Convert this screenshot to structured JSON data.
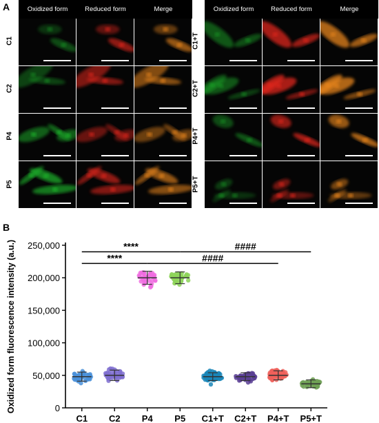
{
  "panel_a": {
    "label": "A",
    "column_headers": [
      "Oxidized form",
      "Reduced form",
      "Merge"
    ],
    "left_rows": [
      "C1",
      "C2",
      "P4",
      "P5"
    ],
    "right_rows": [
      "C1+T",
      "C2+T",
      "P4+T",
      "P5+T"
    ],
    "channel_colors": {
      "oxidized": "#1fae2a",
      "reduced": "#e0261f",
      "merge": "#e8851f"
    }
  },
  "panel_b": {
    "label": "B"
  },
  "chart_data": {
    "type": "scatter",
    "ylabel": "Oxidized form fluorescence intensity (a.u.)",
    "xlabel": "",
    "categories": [
      "C1",
      "C2",
      "P4",
      "P5",
      "C1+T",
      "C2+T",
      "P4+T",
      "P5+T"
    ],
    "ylim": [
      0,
      250000
    ],
    "yticks": [
      "0",
      "50,000",
      "100,000",
      "150,000",
      "200,000",
      "250,000"
    ],
    "ytick_values": [
      0,
      50000,
      100000,
      150000,
      200000,
      250000
    ],
    "colors": [
      "#4a90d9",
      "#7f6fd0",
      "#f06de0",
      "#8ed45a",
      "#1a86b8",
      "#5a3f94",
      "#f0605a",
      "#6fa055"
    ],
    "series": [
      {
        "category": "C1",
        "mean": 48000,
        "sd": 7000,
        "min": 35000,
        "max": 64000,
        "n": 40
      },
      {
        "category": "C2",
        "mean": 50000,
        "sd": 8000,
        "min": 33000,
        "max": 64000,
        "n": 40
      },
      {
        "category": "P4",
        "mean": 200000,
        "sd": 10000,
        "min": 178000,
        "max": 224000,
        "n": 40
      },
      {
        "category": "P5",
        "mean": 200000,
        "sd": 9000,
        "min": 180000,
        "max": 228000,
        "n": 40
      },
      {
        "category": "C1+T",
        "mean": 48000,
        "sd": 6000,
        "min": 34000,
        "max": 63000,
        "n": 60
      },
      {
        "category": "C2+T",
        "mean": 48000,
        "sd": 6000,
        "min": 34000,
        "max": 64000,
        "n": 45
      },
      {
        "category": "P4+T",
        "mean": 50000,
        "sd": 7000,
        "min": 36000,
        "max": 72000,
        "n": 50
      },
      {
        "category": "P5+T",
        "mean": 37000,
        "sd": 6000,
        "min": 24000,
        "max": 55000,
        "n": 45
      }
    ],
    "annotations": [
      {
        "text": "****",
        "from": "C1",
        "to": "P5",
        "y": 240000
      },
      {
        "text": "****",
        "from": "C1",
        "to": "P4",
        "y": 222000
      },
      {
        "text": "####",
        "from": "P5",
        "to": "P5+T",
        "y": 240000
      },
      {
        "text": "####",
        "from": "P4",
        "to": "P4+T",
        "y": 222000
      }
    ]
  }
}
